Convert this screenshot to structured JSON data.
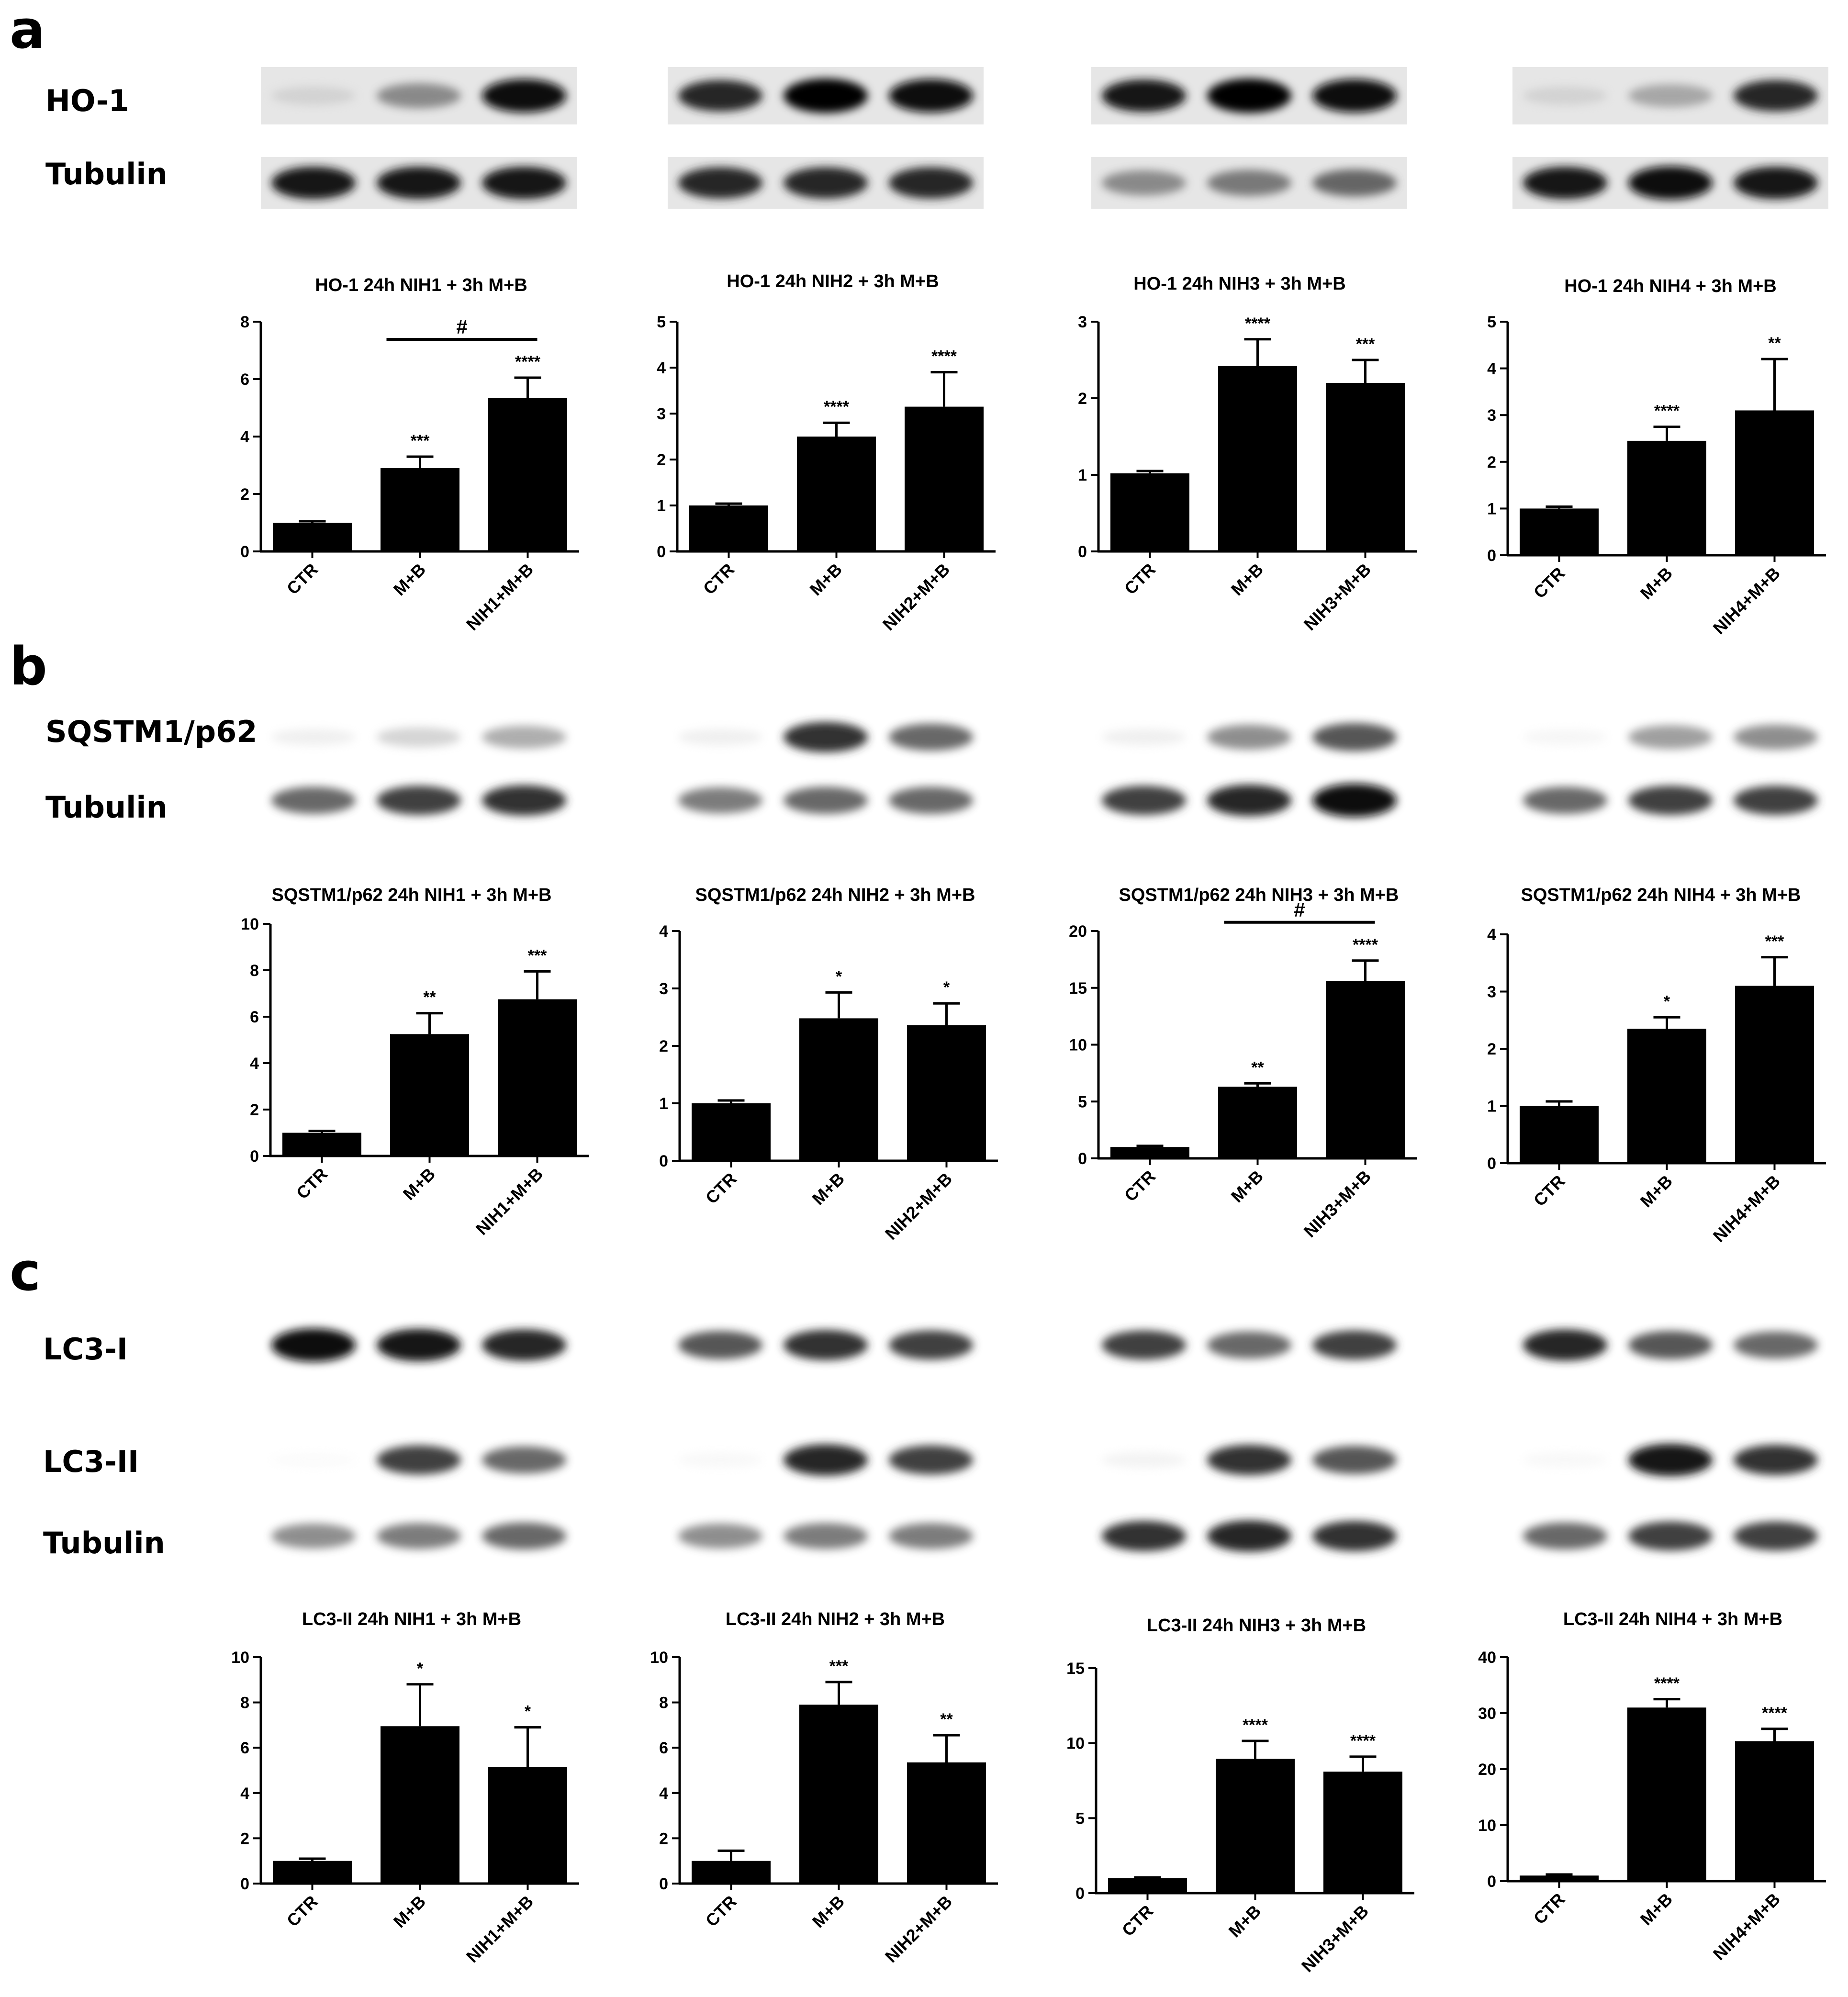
{
  "panels": [
    {
      "letter": "a",
      "blot_labels": [
        "HO-1",
        "Tubulin"
      ]
    },
    {
      "letter": "b",
      "blot_labels": [
        "SQSTM1/p62",
        "Tubulin"
      ]
    },
    {
      "letter": "c",
      "blot_labels": [
        "LC3-I",
        "LC3-II",
        "Tubulin"
      ]
    }
  ],
  "blots": [
    {
      "panel": 0,
      "group": 0,
      "label": "HO-1",
      "intensities": [
        0.25,
        0.55,
        0.95
      ]
    },
    {
      "panel": 0,
      "group": 1,
      "label": "HO-1",
      "intensities": [
        0.85,
        1.0,
        0.95
      ]
    },
    {
      "panel": 0,
      "group": 2,
      "label": "HO-1",
      "intensities": [
        0.9,
        1.0,
        0.95
      ]
    },
    {
      "panel": 0,
      "group": 3,
      "label": "HO-1",
      "intensities": [
        0.25,
        0.45,
        0.85
      ]
    },
    {
      "panel": 0,
      "group": 0,
      "label": "Tubulin",
      "intensities": [
        0.9,
        0.9,
        0.9
      ]
    },
    {
      "panel": 0,
      "group": 1,
      "label": "Tubulin",
      "intensities": [
        0.85,
        0.85,
        0.85
      ]
    },
    {
      "panel": 0,
      "group": 2,
      "label": "Tubulin",
      "intensities": [
        0.55,
        0.6,
        0.65
      ]
    },
    {
      "panel": 0,
      "group": 3,
      "label": "Tubulin",
      "intensities": [
        0.9,
        0.95,
        0.9
      ]
    },
    {
      "panel": 1,
      "group": 0,
      "label": "SQSTM1/p62",
      "intensities": [
        0.15,
        0.3,
        0.45
      ]
    },
    {
      "panel": 1,
      "group": 1,
      "label": "SQSTM1/p62",
      "intensities": [
        0.15,
        0.8,
        0.65
      ]
    },
    {
      "panel": 1,
      "group": 2,
      "label": "SQSTM1/p62",
      "intensities": [
        0.15,
        0.55,
        0.7
      ]
    },
    {
      "panel": 1,
      "group": 3,
      "label": "SQSTM1/p62",
      "intensities": [
        0.1,
        0.5,
        0.55
      ]
    },
    {
      "panel": 1,
      "group": 0,
      "label": "Tubulin",
      "intensities": [
        0.65,
        0.75,
        0.8
      ]
    },
    {
      "panel": 1,
      "group": 1,
      "label": "Tubulin",
      "intensities": [
        0.6,
        0.65,
        0.65
      ]
    },
    {
      "panel": 1,
      "group": 2,
      "label": "Tubulin",
      "intensities": [
        0.75,
        0.85,
        0.95
      ]
    },
    {
      "panel": 1,
      "group": 3,
      "label": "Tubulin",
      "intensities": [
        0.65,
        0.75,
        0.75
      ]
    },
    {
      "panel": 2,
      "group": 0,
      "label": "LC3-I",
      "intensities": [
        0.95,
        0.9,
        0.85
      ]
    },
    {
      "panel": 2,
      "group": 1,
      "label": "LC3-I",
      "intensities": [
        0.7,
        0.8,
        0.75
      ]
    },
    {
      "panel": 2,
      "group": 2,
      "label": "LC3-I",
      "intensities": [
        0.75,
        0.65,
        0.75
      ]
    },
    {
      "panel": 2,
      "group": 3,
      "label": "LC3-I",
      "intensities": [
        0.85,
        0.7,
        0.65
      ]
    },
    {
      "panel": 2,
      "group": 0,
      "label": "LC3-II",
      "intensities": [
        0.05,
        0.75,
        0.65
      ]
    },
    {
      "panel": 2,
      "group": 1,
      "label": "LC3-II",
      "intensities": [
        0.08,
        0.85,
        0.75
      ]
    },
    {
      "panel": 2,
      "group": 2,
      "label": "LC3-II",
      "intensities": [
        0.12,
        0.8,
        0.7
      ]
    },
    {
      "panel": 2,
      "group": 3,
      "label": "LC3-II",
      "intensities": [
        0.08,
        0.9,
        0.8
      ]
    },
    {
      "panel": 2,
      "group": 0,
      "label": "Tubulin",
      "intensities": [
        0.55,
        0.6,
        0.65
      ]
    },
    {
      "panel": 2,
      "group": 1,
      "label": "Tubulin",
      "intensities": [
        0.55,
        0.6,
        0.6
      ]
    },
    {
      "panel": 2,
      "group": 2,
      "label": "Tubulin",
      "intensities": [
        0.8,
        0.85,
        0.8
      ]
    },
    {
      "panel": 2,
      "group": 3,
      "label": "Tubulin",
      "intensities": [
        0.65,
        0.75,
        0.75
      ]
    }
  ],
  "chart_data": [
    {
      "type": "bar",
      "title": "HO-1 24h NIH1 + 3h M+B",
      "categories": [
        "CTR",
        "M+B",
        "NIH1+M+B"
      ],
      "values": [
        1.0,
        2.9,
        5.35
      ],
      "errors": [
        0.05,
        0.4,
        0.7
      ],
      "significance": [
        "",
        "***",
        "****"
      ],
      "ylim": [
        0,
        8
      ],
      "yticks": [
        0,
        2,
        4,
        6,
        8
      ],
      "comparison": {
        "from": 1,
        "to": 2,
        "label": "#"
      }
    },
    {
      "type": "bar",
      "title": "HO-1 24h NIH2 + 3h M+B",
      "categories": [
        "CTR",
        "M+B",
        "NIH2+M+B"
      ],
      "values": [
        1.0,
        2.5,
        3.15
      ],
      "errors": [
        0.04,
        0.3,
        0.75
      ],
      "significance": [
        "",
        "****",
        "****"
      ],
      "ylim": [
        0,
        5
      ],
      "yticks": [
        0,
        1,
        2,
        3,
        4,
        5
      ]
    },
    {
      "type": "bar",
      "title": "HO-1 24h NIH3 + 3h M+B",
      "categories": [
        "CTR",
        "M+B",
        "NIH3+M+B"
      ],
      "values": [
        1.02,
        2.42,
        2.2
      ],
      "errors": [
        0.03,
        0.35,
        0.3
      ],
      "significance": [
        "",
        "****",
        "***"
      ],
      "ylim": [
        0,
        3
      ],
      "yticks": [
        0,
        1,
        2,
        3
      ]
    },
    {
      "type": "bar",
      "title": "HO-1 24h NIH4 + 3h M+B",
      "categories": [
        "CTR",
        "M+B",
        "NIH4+M+B"
      ],
      "values": [
        1.0,
        2.45,
        3.1
      ],
      "errors": [
        0.04,
        0.3,
        1.1
      ],
      "significance": [
        "",
        "****",
        "**"
      ],
      "ylim": [
        0,
        5
      ],
      "yticks": [
        0,
        1,
        2,
        3,
        4,
        5
      ]
    },
    {
      "type": "bar",
      "title": "SQSTM1/p62 24h NIH1 + 3h M+B",
      "categories": [
        "CTR",
        "M+B",
        "NIH1+M+B"
      ],
      "values": [
        1.0,
        5.25,
        6.75
      ],
      "errors": [
        0.08,
        0.9,
        1.2
      ],
      "significance": [
        "",
        "**",
        "***"
      ],
      "ylim": [
        0,
        10
      ],
      "yticks": [
        0,
        2,
        4,
        6,
        8,
        10
      ]
    },
    {
      "type": "bar",
      "title": "SQSTM1/p62 24h NIH2 + 3h M+B",
      "categories": [
        "CTR",
        "M+B",
        "NIH2+M+B"
      ],
      "values": [
        1.0,
        2.48,
        2.36
      ],
      "errors": [
        0.05,
        0.45,
        0.38
      ],
      "significance": [
        "",
        "*",
        "*"
      ],
      "ylim": [
        0,
        4
      ],
      "yticks": [
        0,
        1,
        2,
        3,
        4
      ]
    },
    {
      "type": "bar",
      "title": "SQSTM1/p62 24h NIH3 + 3h M+B",
      "categories": [
        "CTR",
        "M+B",
        "NIH3+M+B"
      ],
      "values": [
        1.0,
        6.3,
        15.6
      ],
      "errors": [
        0.1,
        0.3,
        1.8
      ],
      "significance": [
        "",
        "**",
        "****"
      ],
      "ylim": [
        0,
        20
      ],
      "yticks": [
        0,
        5,
        10,
        15,
        20
      ],
      "comparison": {
        "from": 1,
        "to": 2,
        "label": "#"
      }
    },
    {
      "type": "bar",
      "title": "SQSTM1/p62 24h NIH4 + 3h M+B",
      "categories": [
        "CTR",
        "M+B",
        "NIH4+M+B"
      ],
      "values": [
        1.0,
        2.35,
        3.1
      ],
      "errors": [
        0.08,
        0.2,
        0.5
      ],
      "significance": [
        "",
        "*",
        "***"
      ],
      "ylim": [
        0,
        4
      ],
      "yticks": [
        0,
        1,
        2,
        3,
        4
      ]
    },
    {
      "type": "bar",
      "title": "LC3-II 24h NIH1 + 3h M+B",
      "categories": [
        "CTR",
        "M+B",
        "NIH1+M+B"
      ],
      "values": [
        1.0,
        6.95,
        5.15
      ],
      "errors": [
        0.1,
        1.85,
        1.75
      ],
      "significance": [
        "",
        "*",
        "*"
      ],
      "ylim": [
        0,
        10
      ],
      "yticks": [
        0,
        2,
        4,
        6,
        8,
        10
      ]
    },
    {
      "type": "bar",
      "title": "LC3-II 24h NIH2 + 3h M+B",
      "categories": [
        "CTR",
        "M+B",
        "NIH2+M+B"
      ],
      "values": [
        1.0,
        7.9,
        5.35
      ],
      "errors": [
        0.45,
        1.0,
        1.2
      ],
      "significance": [
        "",
        "***",
        "**"
      ],
      "ylim": [
        0,
        10
      ],
      "yticks": [
        0,
        2,
        4,
        6,
        8,
        10
      ]
    },
    {
      "type": "bar",
      "title": "LC3-II 24h NIH3 + 3h M+B",
      "categories": [
        "CTR",
        "M+B",
        "NIH3+M+B"
      ],
      "values": [
        1.0,
        8.95,
        8.1
      ],
      "errors": [
        0.05,
        1.2,
        1.0
      ],
      "significance": [
        "",
        "****",
        "****"
      ],
      "ylim": [
        0,
        15
      ],
      "yticks": [
        0,
        5,
        10,
        15
      ]
    },
    {
      "type": "bar",
      "title": "LC3-II 24h NIH4 + 3h M+B",
      "categories": [
        "CTR",
        "M+B",
        "NIH4+M+B"
      ],
      "values": [
        1.0,
        31.0,
        25.0
      ],
      "errors": [
        0.2,
        1.5,
        2.2
      ],
      "significance": [
        "",
        "****",
        "****"
      ],
      "ylim": [
        0,
        40
      ],
      "yticks": [
        0,
        10,
        20,
        30,
        40
      ]
    }
  ]
}
